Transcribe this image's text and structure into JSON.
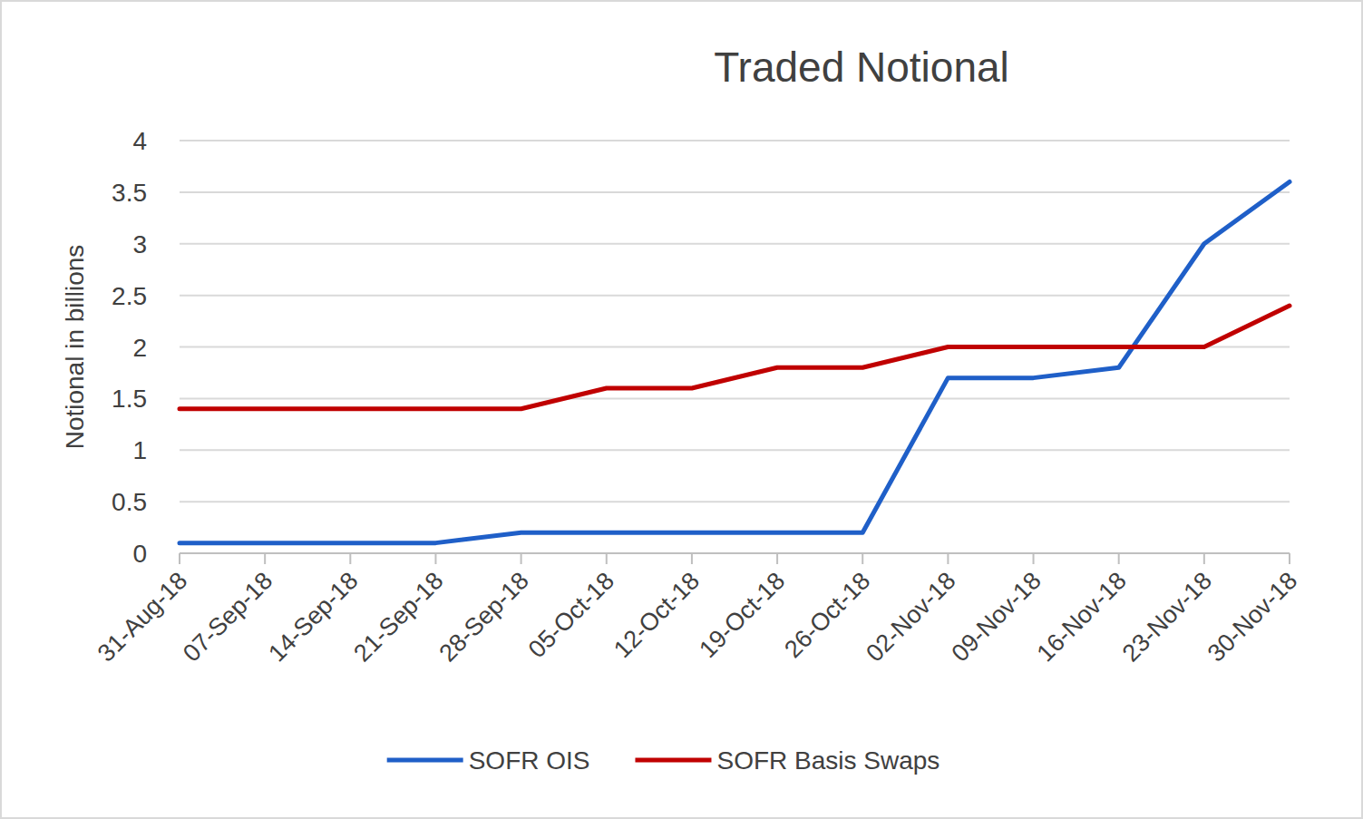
{
  "chart_data": {
    "type": "line",
    "title": "Traded Notional",
    "y_label": "Notional in billions",
    "categories": [
      "31-Aug-18",
      "07-Sep-18",
      "14-Sep-18",
      "21-Sep-18",
      "28-Sep-18",
      "05-Oct-18",
      "12-Oct-18",
      "19-Oct-18",
      "26-Oct-18",
      "02-Nov-18",
      "09-Nov-18",
      "16-Nov-18",
      "23-Nov-18",
      "30-Nov-18"
    ],
    "series": [
      {
        "name": "SOFR OIS",
        "color": "#1f5fc8",
        "values": [
          0.1,
          0.1,
          0.1,
          0.1,
          0.2,
          0.2,
          0.2,
          0.2,
          0.2,
          1.7,
          1.7,
          1.8,
          3.0,
          3.6
        ]
      },
      {
        "name": "SOFR Basis Swaps",
        "color": "#c00000",
        "values": [
          1.4,
          1.4,
          1.4,
          1.4,
          1.4,
          1.6,
          1.6,
          1.8,
          1.8,
          2.0,
          2.0,
          2.0,
          2.0,
          2.4
        ]
      }
    ],
    "ylim": [
      0,
      4
    ],
    "yticks": [
      0,
      0.5,
      1,
      1.5,
      2,
      2.5,
      3,
      3.5,
      4
    ],
    "grid": true,
    "legend": "bottom"
  }
}
